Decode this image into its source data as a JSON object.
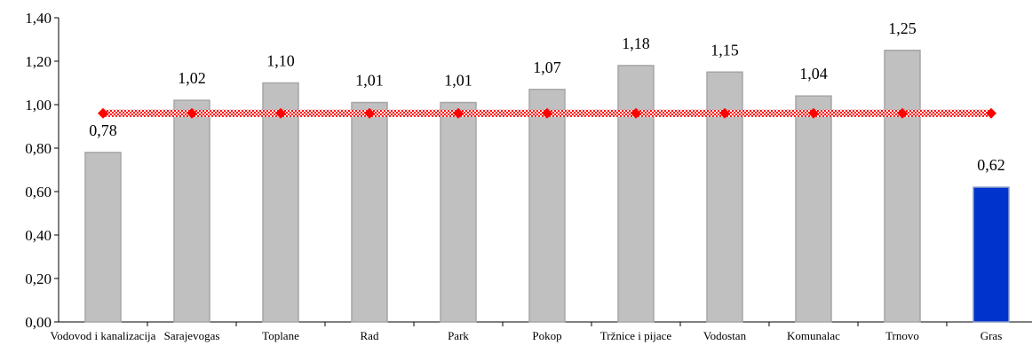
{
  "chart_data": {
    "type": "bar",
    "categories": [
      "Vodovod i kanalizacija",
      "Sarajevogas",
      "Toplane",
      "Rad",
      "Park",
      "Pokop",
      "Tržnice i pijace",
      "Vodostan",
      "Komunalac",
      "Trnovo",
      "Gras"
    ],
    "series": [
      {
        "type": "bar",
        "values": [
          0.78,
          1.02,
          1.1,
          1.01,
          1.01,
          1.07,
          1.18,
          1.15,
          1.04,
          1.25,
          0.62
        ],
        "data_labels": [
          "0,78",
          "1,02",
          "1,10",
          "1,01",
          "1,01",
          "1,07",
          "1,18",
          "1,15",
          "1,04",
          "1,25",
          "0,62"
        ],
        "color": "#c0c0c0",
        "highlight_color": "#0033cc",
        "highlight_index": 10
      },
      {
        "type": "line",
        "values": [
          0.96,
          0.96,
          0.96,
          0.96,
          0.96,
          0.96,
          0.96,
          0.96,
          0.96,
          0.96,
          0.96
        ],
        "color": "#ff0000",
        "marker": "diamond"
      }
    ],
    "y_ticks": [
      0,
      0.2,
      0.4,
      0.6,
      0.8,
      1.0,
      1.2,
      1.4
    ],
    "y_tick_labels": [
      "0,00",
      "0,20",
      "0,40",
      "0,60",
      "0,80",
      "1,00",
      "1,20",
      "1,40"
    ],
    "ylim": [
      0,
      1.4
    ],
    "grid": false,
    "legend": "none",
    "title": "",
    "xlabel": "",
    "ylabel": ""
  }
}
